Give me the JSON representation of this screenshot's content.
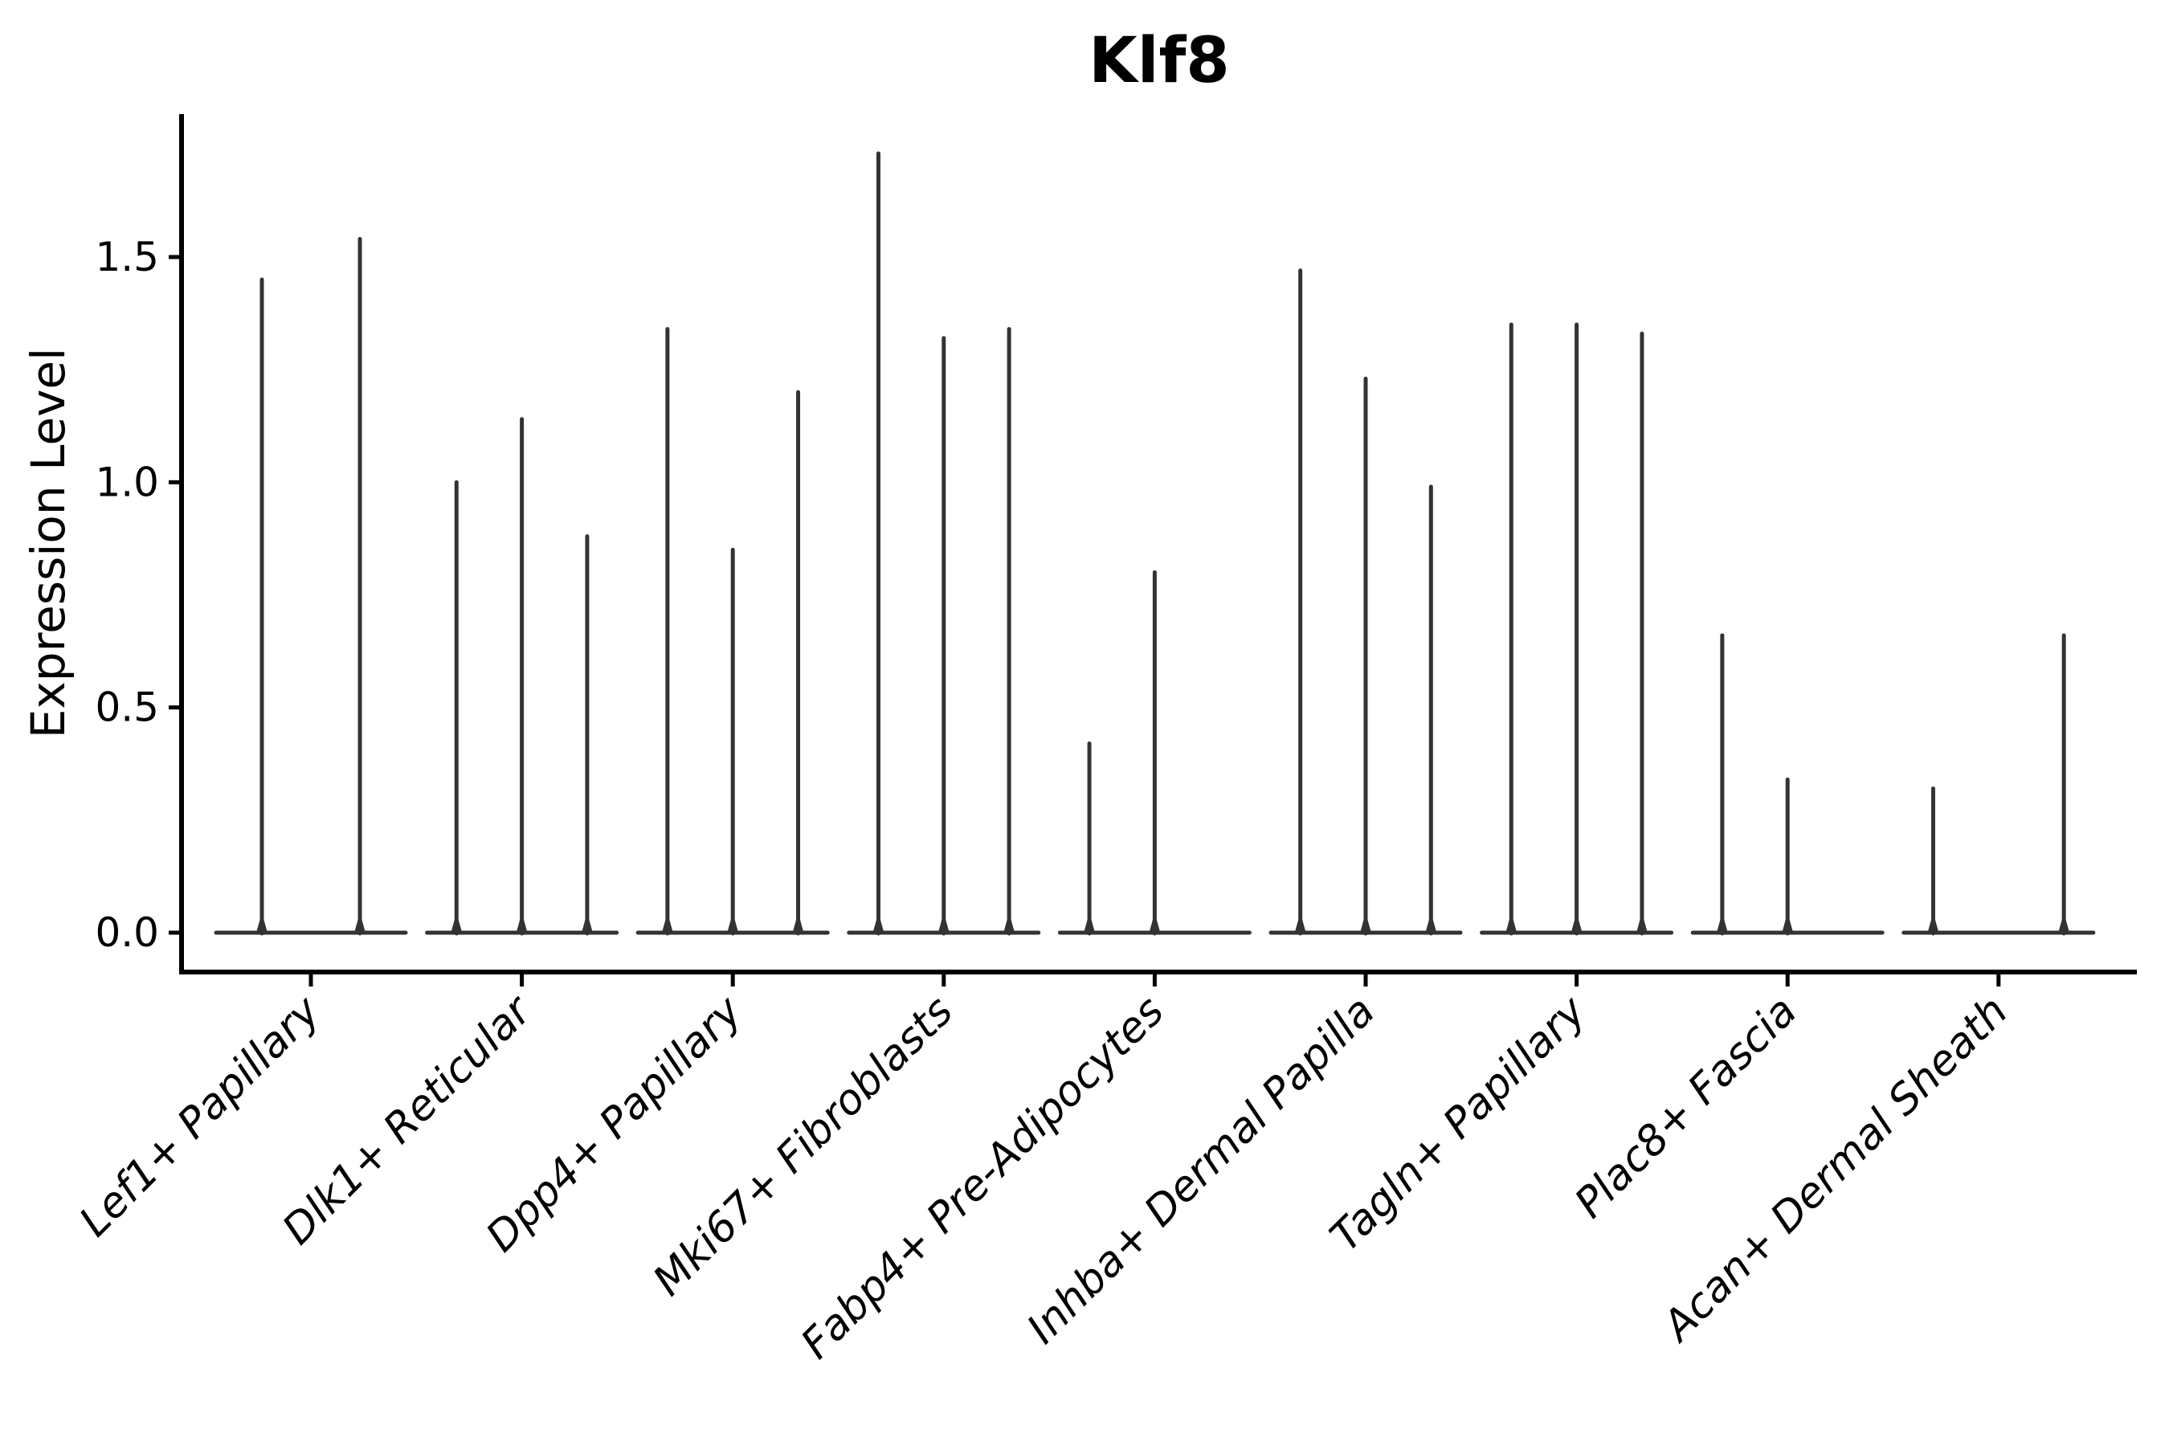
{
  "colors": {
    "violin_stroke": "#333333",
    "axis_color": "#000000",
    "text_color": "#000000",
    "background": "#ffffff"
  },
  "chart_data": {
    "type": "violin",
    "title": "Klf8",
    "xlabel": "",
    "ylabel": "Expression Level",
    "ylim": [
      -0.09,
      1.82
    ],
    "grid": false,
    "legend": false,
    "yticks": [
      {
        "label": "0.0",
        "value": 0.0
      },
      {
        "label": "0.5",
        "value": 0.5
      },
      {
        "label": "1.0",
        "value": 1.0
      },
      {
        "label": "1.5",
        "value": 1.5
      }
    ],
    "categories": [
      "Lef1+ Papillary",
      "Dlk1+ Reticular",
      "Dpp4+ Papillary",
      "Mki67+ Fibroblasts",
      "Fabp4+ Pre-Adipocytes",
      "Inhba+ Dermal Papilla",
      "Tagln+ Papillary",
      "Plac8+ Fascia",
      "Acan+ Dermal Sheath"
    ],
    "series": [
      {
        "category": "Lef1+ Papillary",
        "violin_max_expression": [
          1.45,
          1.54
        ]
      },
      {
        "category": "Dlk1+ Reticular",
        "violin_max_expression": [
          1.0,
          1.14,
          0.88
        ]
      },
      {
        "category": "Dpp4+ Papillary",
        "violin_max_expression": [
          1.34,
          0.85,
          1.2
        ]
      },
      {
        "category": "Mki67+ Fibroblasts",
        "violin_max_expression": [
          1.73,
          1.32,
          1.34
        ]
      },
      {
        "category": "Fabp4+ Pre-Adipocytes",
        "violin_max_expression": [
          0.42,
          0.8,
          0
        ]
      },
      {
        "category": "Inhba+ Dermal Papilla",
        "violin_max_expression": [
          1.47,
          1.23,
          0.99
        ]
      },
      {
        "category": "Tagln+ Papillary",
        "violin_max_expression": [
          1.35,
          1.35,
          1.33
        ]
      },
      {
        "category": "Plac8+ Fascia",
        "violin_max_expression": [
          0.66,
          0.34,
          0
        ]
      },
      {
        "category": "Acan+ Dermal Sheath",
        "violin_max_expression": [
          0.32,
          0,
          0.66
        ]
      }
    ]
  }
}
